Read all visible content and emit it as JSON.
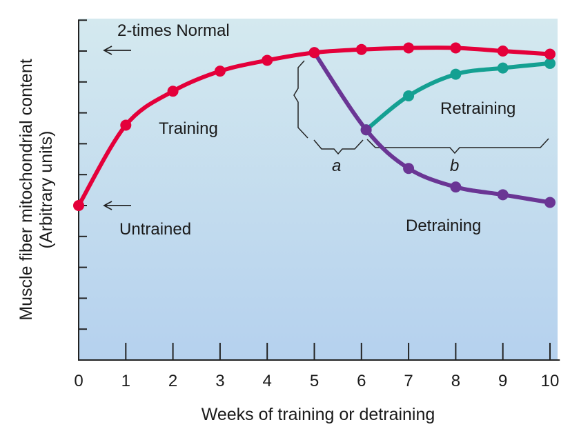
{
  "chart_data": {
    "type": "line",
    "title": "",
    "xlabel": "Weeks of training or detraining",
    "ylabel": "Muscle fiber mitochondrial content",
    "ylabel_sub": "(Arbitrary units)",
    "xlim": [
      0,
      10.15
    ],
    "ylim": [
      0,
      2.2
    ],
    "x_ticks": [
      0,
      1,
      2,
      3,
      4,
      5,
      6,
      7,
      8,
      9,
      10
    ],
    "x_tick_labels": [
      "0",
      "1",
      "2",
      "3",
      "4",
      "5",
      "6",
      "7",
      "8",
      "9",
      "10"
    ],
    "y_ticks": [
      0.2,
      0.4,
      0.6,
      0.8,
      1.0,
      1.2,
      1.4,
      1.6,
      1.8,
      2.0
    ],
    "grid": false,
    "background": [
      "#d4e9ef",
      "#b5d1ee"
    ],
    "series": [
      {
        "name": "Training",
        "color": "#e4003a",
        "x": [
          0,
          1,
          2,
          3,
          4,
          5,
          6,
          7,
          8,
          9,
          10
        ],
        "y": [
          1.0,
          1.52,
          1.74,
          1.87,
          1.94,
          1.99,
          2.01,
          2.02,
          2.02,
          2.0,
          1.98
        ]
      },
      {
        "name": "Detraining",
        "color": "#6a3594",
        "x": [
          5,
          6.1,
          7,
          8,
          9,
          10
        ],
        "y": [
          1.99,
          1.49,
          1.24,
          1.12,
          1.07,
          1.02
        ]
      },
      {
        "name": "Retraining",
        "color": "#14a092",
        "x": [
          6.1,
          7,
          8,
          9,
          10
        ],
        "y": [
          1.49,
          1.71,
          1.85,
          1.89,
          1.92
        ]
      }
    ],
    "annotations": {
      "two_times_normal": "2-times Normal",
      "untrained": "Untrained",
      "bracket_a": "a",
      "bracket_b": "b"
    }
  }
}
